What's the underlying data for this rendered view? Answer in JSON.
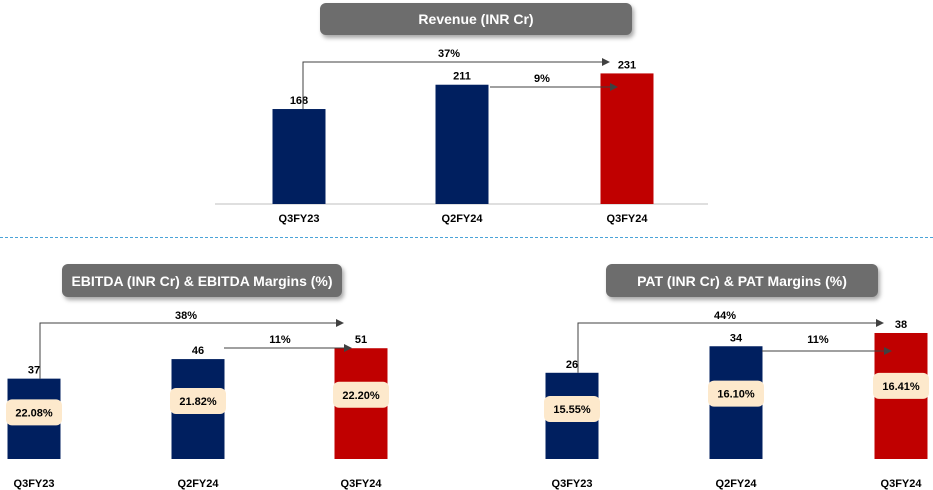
{
  "colors": {
    "navy": "#001f5f",
    "red": "#c00000",
    "title_bg": "#6d6d6d",
    "margin_bg": "#fde9cc",
    "divider": "#4aa3d8"
  },
  "chart_data": [
    {
      "id": "revenue",
      "type": "bar",
      "title": "Revenue (INR Cr)",
      "categories": [
        "Q3FY23",
        "Q2FY24",
        "Q3FY24"
      ],
      "values": [
        168,
        211,
        231
      ],
      "value_labels": [
        "168",
        "211",
        "231"
      ],
      "bar_colors": [
        "#001f5f",
        "#001f5f",
        "#c00000"
      ],
      "growth": [
        {
          "label": "37%",
          "from": "Q3FY23",
          "to": "Q3FY24"
        },
        {
          "label": "9%",
          "from": "Q2FY24",
          "to": "Q3FY24"
        }
      ]
    },
    {
      "id": "ebitda",
      "type": "bar",
      "title": "EBITDA (INR Cr) & EBITDA Margins (%)",
      "categories": [
        "Q3FY23",
        "Q2FY24",
        "Q3FY24"
      ],
      "values": [
        37,
        46,
        51
      ],
      "value_labels": [
        "37",
        "46",
        "51"
      ],
      "margins": [
        "22.08%",
        "21.82%",
        "22.20%"
      ],
      "bar_colors": [
        "#001f5f",
        "#001f5f",
        "#c00000"
      ],
      "growth": [
        {
          "label": "38%",
          "from": "Q3FY23",
          "to": "Q3FY24"
        },
        {
          "label": "11%",
          "from": "Q2FY24",
          "to": "Q3FY24"
        }
      ]
    },
    {
      "id": "pat",
      "type": "bar",
      "title": "PAT (INR Cr) & PAT Margins (%)",
      "categories": [
        "Q3FY23",
        "Q2FY24",
        "Q3FY24"
      ],
      "values": [
        26,
        34,
        38
      ],
      "value_labels": [
        "26",
        "34",
        "38"
      ],
      "margins": [
        "15.55%",
        "16.10%",
        "16.41%"
      ],
      "bar_colors": [
        "#001f5f",
        "#001f5f",
        "#c00000"
      ],
      "growth": [
        {
          "label": "44%",
          "from": "Q3FY23",
          "to": "Q3FY24"
        },
        {
          "label": "11%",
          "from": "Q2FY24",
          "to": "Q3FY24"
        }
      ]
    }
  ]
}
